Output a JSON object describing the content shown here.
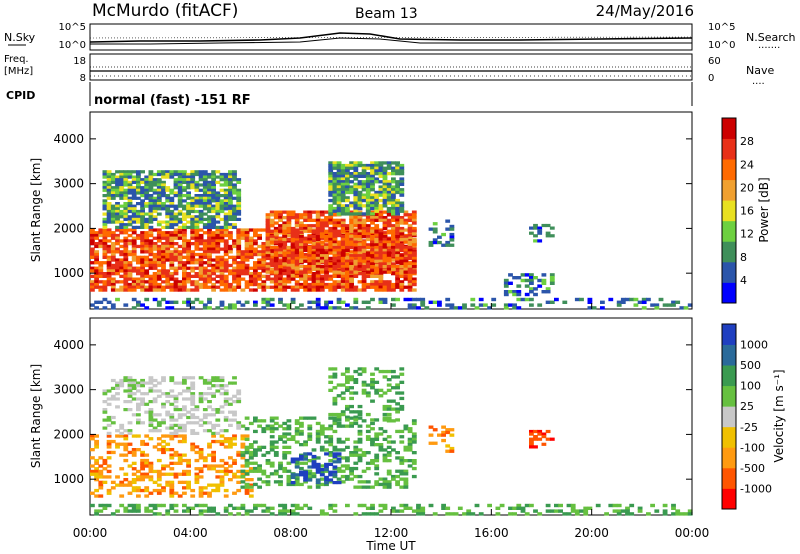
{
  "header": {
    "station": "McMurdo (fitACF)",
    "beam": "Beam 13",
    "date": "24/May/2016"
  },
  "noise_panel": {
    "left_label": "N.Sky",
    "right_label": "N.Search",
    "right_dots": ".......",
    "left_ticks": [
      "10^5",
      "10^0"
    ],
    "right_ticks": [
      "10^5",
      "10^0"
    ]
  },
  "freq_panel": {
    "left_label_1": "Freq.",
    "left_label_2": "[MHz]",
    "right_label": "Nave",
    "right_dots": "....",
    "left_ticks": [
      "18",
      "8"
    ],
    "right_ticks": [
      "60",
      "0"
    ]
  },
  "cpid": {
    "label": "CPID",
    "text": "normal (fast) -151 RF"
  },
  "colors": {
    "power": [
      "#0000ff",
      "#2b55aa",
      "#3f8f5a",
      "#6dd040",
      "#e8e020",
      "#f0a030",
      "#ff6a00",
      "#e83018",
      "#cc0000"
    ],
    "velocity": [
      "#ff0000",
      "#ff5500",
      "#ff9a10",
      "#f0c000",
      "#c8c8c8",
      "#66c040",
      "#3a9a50",
      "#2a6a9a",
      "#1f3fc0"
    ]
  },
  "chart_data": [
    {
      "type": "heatmap",
      "title": "Power",
      "xlabel": "",
      "ylabel": "Slant Range [km]",
      "x": [
        "00:00",
        "04:00",
        "08:00",
        "12:00",
        "16:00",
        "20:00",
        "00:00"
      ],
      "yticks": [
        "1000",
        "2000",
        "3000",
        "4000"
      ],
      "ylim": [
        200,
        4600
      ],
      "colorbar_label": "Power [dB]",
      "colorbar_ticks": [
        "28",
        "24",
        "20",
        "16",
        "12",
        "8",
        "4"
      ],
      "echo_regions": [
        {
          "t_start": 0.0,
          "t_end": 13.0,
          "range_start": 600,
          "range_end": 2000,
          "level": "high"
        },
        {
          "t_start": 7.0,
          "t_end": 13.0,
          "range_start": 1000,
          "range_end": 2400,
          "level": "high"
        },
        {
          "t_start": 0.5,
          "t_end": 6.0,
          "range_start": 2000,
          "range_end": 3300,
          "level": "medium"
        },
        {
          "t_start": 9.5,
          "t_end": 12.5,
          "range_start": 2300,
          "range_end": 3500,
          "level": "medium"
        },
        {
          "t_start": 13.5,
          "t_end": 14.5,
          "range_start": 1600,
          "range_end": 2200,
          "level": "low"
        },
        {
          "t_start": 16.5,
          "t_end": 18.5,
          "range_start": 500,
          "range_end": 1000,
          "level": "low"
        },
        {
          "t_start": 17.5,
          "t_end": 18.5,
          "range_start": 1700,
          "range_end": 2100,
          "level": "low"
        },
        {
          "t_start": 0.0,
          "t_end": 24.0,
          "range_start": 200,
          "range_end": 450,
          "level": "low"
        }
      ]
    },
    {
      "type": "heatmap",
      "title": "Velocity",
      "xlabel": "Time UT",
      "ylabel": "Slant Range [km]",
      "x": [
        "00:00",
        "04:00",
        "08:00",
        "12:00",
        "16:00",
        "20:00",
        "00:00"
      ],
      "yticks": [
        "1000",
        "2000",
        "3000",
        "4000"
      ],
      "ylim": [
        200,
        4600
      ],
      "colorbar_label": "Velocity [m s⁻¹]",
      "colorbar_ticks": [
        "1000",
        "500",
        "100",
        "25",
        "-25",
        "-100",
        "-500",
        "-1000"
      ],
      "echo_regions": [
        {
          "t_start": 0.0,
          "t_end": 6.5,
          "range_start": 600,
          "range_end": 2000,
          "level": "-100"
        },
        {
          "t_start": 6.0,
          "t_end": 13.0,
          "range_start": 800,
          "range_end": 2400,
          "level": "100"
        },
        {
          "t_start": 8.0,
          "t_end": 10.0,
          "range_start": 900,
          "range_end": 1600,
          "level": "1000"
        },
        {
          "t_start": 0.5,
          "t_end": 6.0,
          "range_start": 2000,
          "range_end": 3300,
          "level": "25"
        },
        {
          "t_start": 9.5,
          "t_end": 12.5,
          "range_start": 2300,
          "range_end": 3500,
          "level": "100"
        },
        {
          "t_start": 13.5,
          "t_end": 14.5,
          "range_start": 1600,
          "range_end": 2200,
          "level": "-100"
        },
        {
          "t_start": 17.5,
          "t_end": 18.5,
          "range_start": 1700,
          "range_end": 2100,
          "level": "-500"
        },
        {
          "t_start": 0.0,
          "t_end": 24.0,
          "range_start": 200,
          "range_end": 450,
          "level": "100"
        }
      ]
    }
  ]
}
